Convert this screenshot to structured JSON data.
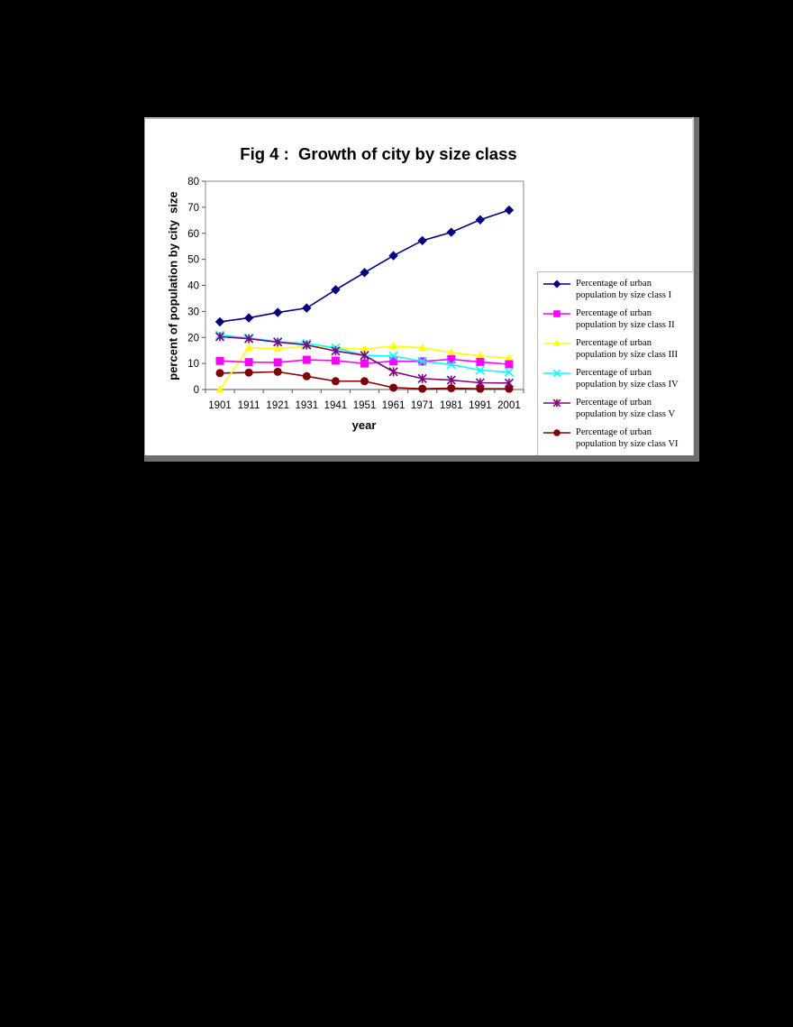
{
  "chart_data": {
    "type": "line",
    "title": "Fig 4 :  Growth of city by size class",
    "xlabel": "year",
    "ylabel": "percent of population by city  size",
    "ylim": [
      0,
      80
    ],
    "yticks": [
      0,
      10,
      20,
      30,
      40,
      50,
      60,
      70,
      80
    ],
    "grid": false,
    "legend_position": "right",
    "categories": [
      "1901",
      "1911",
      "1921",
      "1931",
      "1941",
      "1951",
      "1961",
      "1971",
      "1981",
      "1991",
      "2001"
    ],
    "series": [
      {
        "name": "Percentage of urban population by size class I",
        "color": "#000080",
        "marker": "diamond",
        "values": [
          26.0,
          27.5,
          29.6,
          31.3,
          38.3,
          44.9,
          51.4,
          57.2,
          60.4,
          65.2,
          68.9
        ]
      },
      {
        "name": "Percentage of urban population by size class II",
        "color": "#FF00FF",
        "marker": "square",
        "values": [
          11.0,
          10.5,
          10.4,
          11.4,
          11.1,
          10.0,
          10.9,
          10.8,
          11.6,
          10.6,
          9.7
        ]
      },
      {
        "name": "Percentage of urban population by size class III",
        "color": "#FFFF00",
        "marker": "triangle",
        "values": [
          0.0,
          16.1,
          15.7,
          16.7,
          16.0,
          15.5,
          16.7,
          16.0,
          14.2,
          12.9,
          12.1
        ]
      },
      {
        "name": "Percentage of urban population by size class IV",
        "color": "#00FFFF",
        "marker": "x",
        "values": [
          20.9,
          19.8,
          18.4,
          17.7,
          16.0,
          13.1,
          12.9,
          10.8,
          9.6,
          7.4,
          6.7
        ]
      },
      {
        "name": "Percentage of urban population by size class V",
        "color": "#800080",
        "marker": "star",
        "values": [
          20.3,
          19.5,
          18.2,
          17.1,
          14.8,
          13.1,
          6.8,
          4.2,
          3.6,
          2.6,
          2.5
        ]
      },
      {
        "name": "Percentage of urban population by size class VI",
        "color": "#800000",
        "marker": "circle",
        "values": [
          6.3,
          6.5,
          6.8,
          5.1,
          3.2,
          3.2,
          0.7,
          0.3,
          0.5,
          0.3,
          0.3
        ]
      }
    ]
  },
  "legend": {
    "items": [
      {
        "line1": "Percentage of urban",
        "line2": "population by size class I"
      },
      {
        "line1": "Percentage of urban",
        "line2": "population by size class II"
      },
      {
        "line1": "Percentage of urban",
        "line2": "population by size class III"
      },
      {
        "line1": "Percentage of urban",
        "line2": "population by size class IV"
      },
      {
        "line1": "Percentage of urban",
        "line2": "population by size class V"
      },
      {
        "line1": "Percentage of urban",
        "line2": "population by size class VI"
      }
    ]
  }
}
